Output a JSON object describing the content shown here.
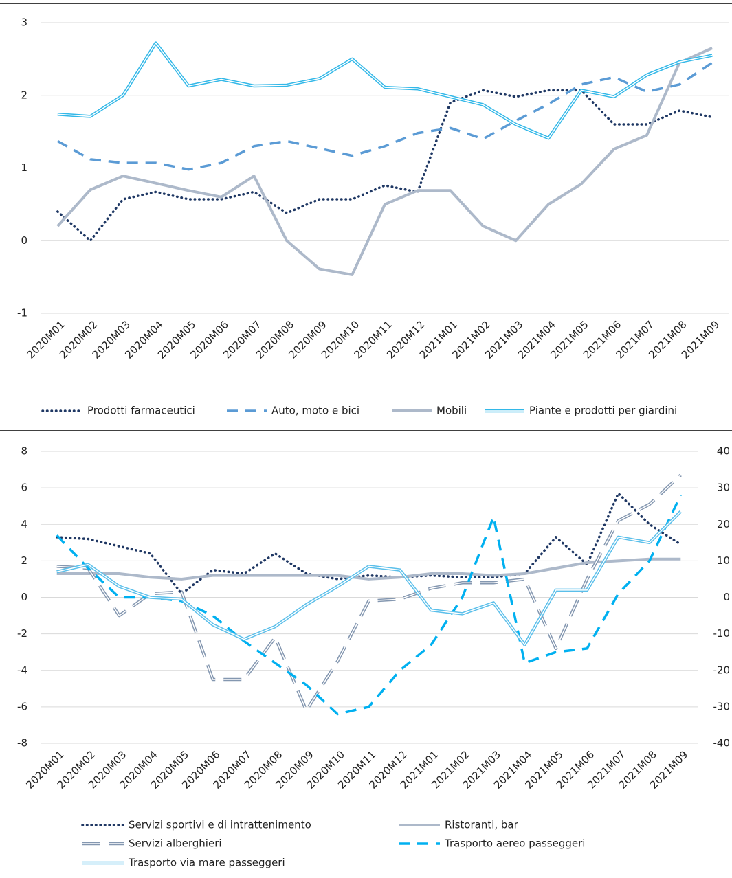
{
  "chart_data": [
    {
      "type": "line",
      "categories": [
        "2020M01",
        "2020M02",
        "2020M03",
        "2020M04",
        "2020M05",
        "2020M06",
        "2020M07",
        "2020M08",
        "2020M09",
        "2020M10",
        "2020M11",
        "2020M12",
        "2021M01",
        "2021M02",
        "2021M03",
        "2021M04",
        "2021M05",
        "2021M06",
        "2021M07",
        "2021M08",
        "2021M09"
      ],
      "ylim": [
        -1,
        3
      ],
      "yticks": [
        -1,
        0,
        1,
        2,
        3
      ],
      "grid": true,
      "series": [
        {
          "name": "Prodotti farmaceutici",
          "color": "#1f3864",
          "line_style": "dotted",
          "values": [
            0.4,
            0.0,
            0.57,
            0.67,
            0.57,
            0.57,
            0.67,
            0.38,
            0.57,
            0.57,
            0.76,
            0.67,
            1.9,
            2.07,
            1.98,
            2.07,
            2.07,
            1.6,
            1.6,
            1.79,
            1.7
          ]
        },
        {
          "name": "Auto, moto e bici",
          "color": "#5b9bd5",
          "line_style": "dashed",
          "values": [
            1.37,
            1.12,
            1.07,
            1.07,
            0.98,
            1.07,
            1.3,
            1.37,
            1.27,
            1.17,
            1.3,
            1.48,
            1.55,
            1.4,
            1.65,
            1.88,
            2.15,
            2.25,
            2.05,
            2.15,
            2.45
          ]
        },
        {
          "name": "Mobili",
          "color": "#adb9ca",
          "line_style": "solid",
          "values": [
            0.2,
            0.7,
            0.89,
            0.79,
            0.69,
            0.6,
            0.89,
            0.0,
            -0.39,
            -0.47,
            0.5,
            0.69,
            0.69,
            0.2,
            0.0,
            0.5,
            0.78,
            1.26,
            1.45,
            2.45,
            2.65
          ]
        },
        {
          "name": "Piante e prodotti per giardini",
          "color": "#33b8e8",
          "line_style": "double",
          "values": [
            1.74,
            1.71,
            2.0,
            2.72,
            2.13,
            2.22,
            2.13,
            2.14,
            2.23,
            2.5,
            2.11,
            2.09,
            1.98,
            1.87,
            1.6,
            1.41,
            2.07,
            1.98,
            2.28,
            2.46,
            2.55
          ]
        }
      ]
    },
    {
      "type": "line",
      "categories": [
        "2020M01",
        "2020M02",
        "2020M03",
        "2020M04",
        "2020M05",
        "2020M06",
        "2020M07",
        "2020M08",
        "2020M09",
        "2020M10",
        "2020M11",
        "2020M12",
        "2021M01",
        "2021M02",
        "2021M03",
        "2021M04",
        "2021M05",
        "2021M06",
        "2021M07",
        "2021M08",
        "2021M09"
      ],
      "ylim": [
        -8,
        8
      ],
      "yticks": [
        -8,
        -6,
        -4,
        -2,
        0,
        2,
        4,
        6,
        8
      ],
      "y2lim": [
        -40,
        40
      ],
      "y2ticks": [
        -40,
        -30,
        -20,
        -10,
        0,
        10,
        20,
        30,
        40
      ],
      "grid": true,
      "series": [
        {
          "name": "Servizi sportivi e di intrattenimento",
          "color": "#203864",
          "line_style": "dotted",
          "values": [
            3.3,
            3.2,
            2.8,
            2.4,
            0.2,
            1.5,
            1.3,
            2.4,
            1.3,
            1.0,
            1.2,
            1.1,
            1.2,
            1.1,
            1.1,
            1.3,
            3.3,
            1.8,
            5.7,
            4.0,
            2.9
          ]
        },
        {
          "name": "Ristoranti, bar",
          "color": "#adb9ca",
          "line_style": "solid",
          "values": [
            1.3,
            1.3,
            1.3,
            1.1,
            1.0,
            1.2,
            1.2,
            1.2,
            1.2,
            1.2,
            1.0,
            1.1,
            1.3,
            1.3,
            1.2,
            1.3,
            1.6,
            1.9,
            2.0,
            2.1,
            2.1
          ]
        },
        {
          "name": "Servizi alberghieri",
          "color": "#8497b0",
          "line_style": "double-dashed",
          "values": [
            1.7,
            1.6,
            -1.0,
            0.2,
            0.3,
            -4.5,
            -4.5,
            -2.2,
            -6.2,
            -3.5,
            -0.2,
            -0.1,
            0.5,
            0.8,
            0.8,
            1.0,
            -2.8,
            1.0,
            4.2,
            5.1,
            6.7
          ]
        },
        {
          "name": "Trasporto aereo passeggeri",
          "color": "#00b0f0",
          "line_style": "dashed",
          "axis": "y2",
          "values": [
            17,
            8,
            0,
            0,
            -1,
            -5,
            -12,
            -18,
            -24,
            -32,
            -30,
            -20,
            -13,
            0,
            22,
            -18,
            -15,
            -14,
            1,
            10,
            28
          ]
        },
        {
          "name": "Trasporto via mare passeggeri",
          "color": "#5bbfea",
          "line_style": "double",
          "values": [
            1.4,
            1.8,
            0.6,
            0.0,
            -0.1,
            -1.5,
            -2.3,
            -1.6,
            -0.4,
            0.6,
            1.7,
            1.5,
            -0.7,
            -0.9,
            -0.3,
            -2.6,
            0.4,
            0.4,
            3.3,
            3.0,
            4.7
          ]
        }
      ]
    }
  ]
}
